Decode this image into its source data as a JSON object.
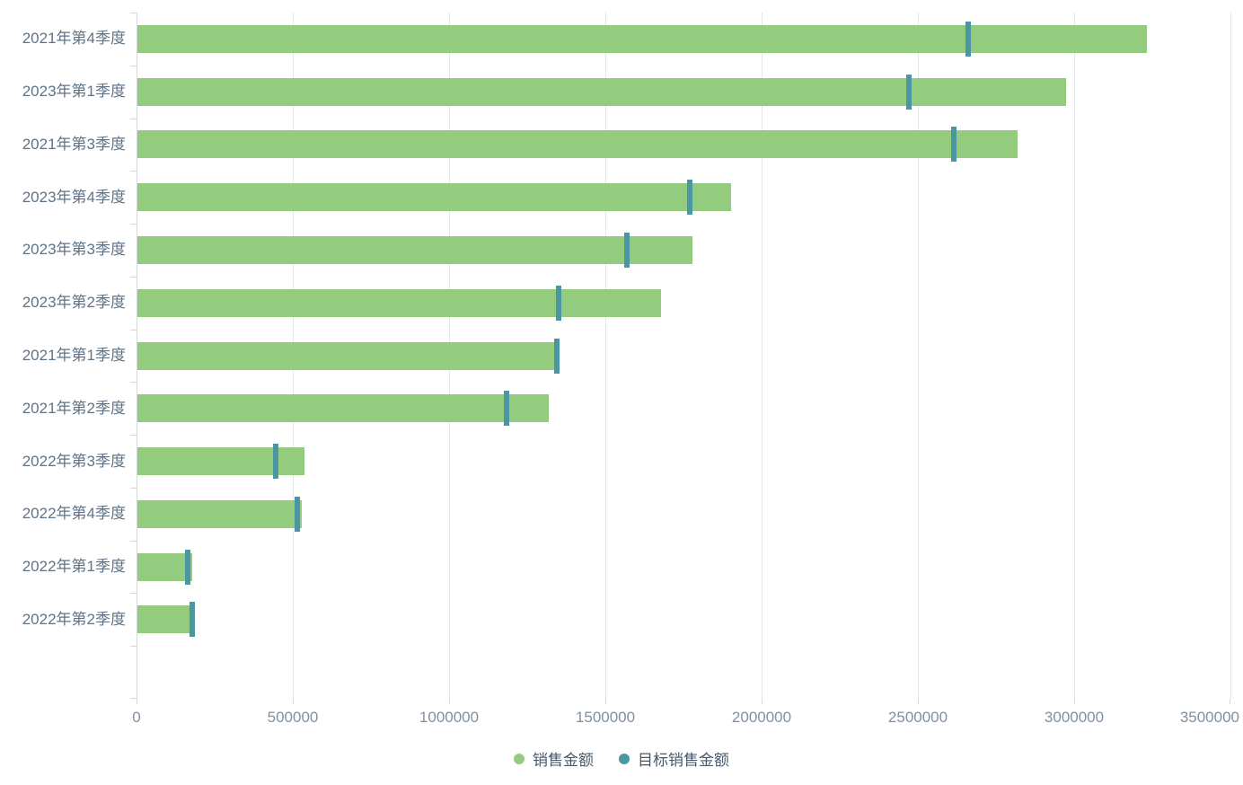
{
  "chart_data": {
    "type": "bar",
    "orientation": "horizontal",
    "title": "",
    "categories": [
      "2021年第4季度",
      "2023年第1季度",
      "2021年第3季度",
      "2023年第4季度",
      "2023年第3季度",
      "2023年第2季度",
      "2021年第1季度",
      "2021年第2季度",
      "2022年第3季度",
      "2022年第4季度",
      "2022年第1季度",
      "2022年第2季度"
    ],
    "series": [
      {
        "name": "销售金额",
        "type": "bar",
        "color": "#93cc7e",
        "values": [
          3230000,
          2970000,
          2815000,
          1900000,
          1775000,
          1675000,
          1335000,
          1315000,
          535000,
          525000,
          175000,
          185000
        ]
      },
      {
        "name": "目标销售金额",
        "type": "tick-marker",
        "color": "#4a96a2",
        "values": [
          2660000,
          2470000,
          2615000,
          1770000,
          1570000,
          1350000,
          1345000,
          1185000,
          445000,
          515000,
          163000,
          178000
        ]
      }
    ],
    "xlim": [
      0,
      3500000
    ],
    "x_tick_labels": [
      "0",
      "500000",
      "1000000",
      "1500000",
      "2000000",
      "2500000",
      "3000000",
      "3500000"
    ],
    "grid": true,
    "legend_position": "bottom"
  },
  "colors": {
    "background": "#ffffff",
    "gridline": "#e3e6eb",
    "axis": "#d4d8dd",
    "category_label": "#5f7388",
    "axis_label": "#8090a4",
    "legend_label": "#46586c"
  }
}
